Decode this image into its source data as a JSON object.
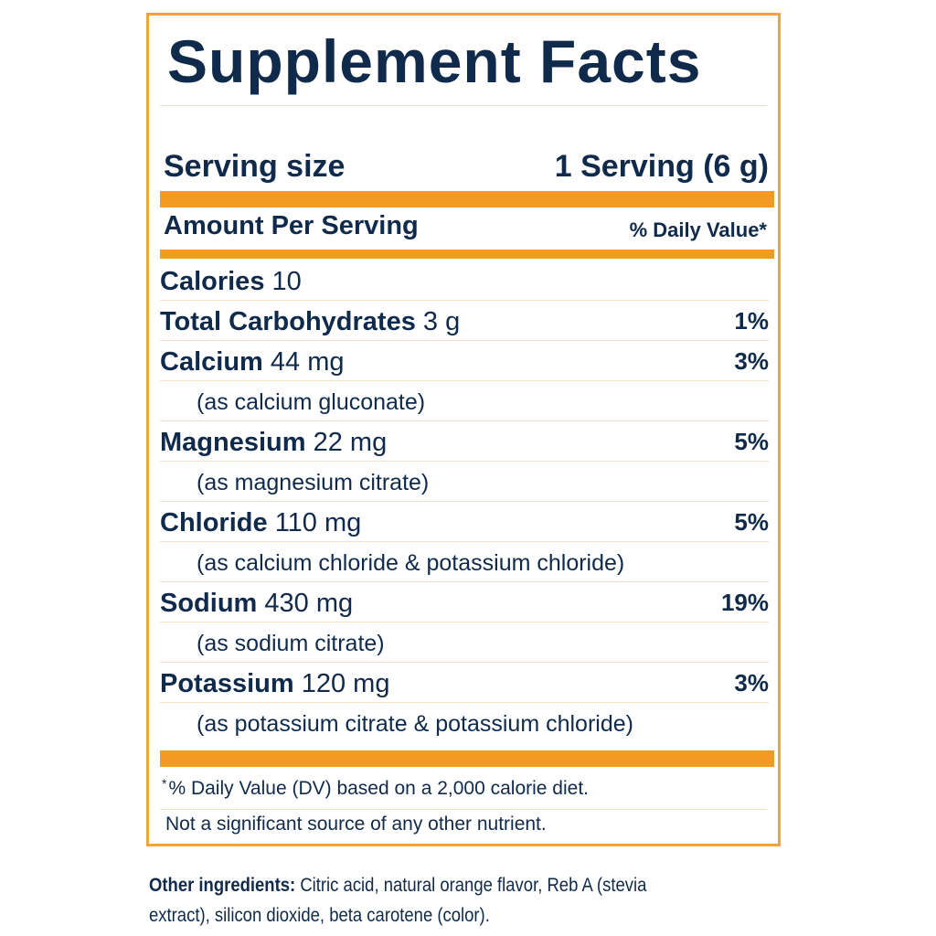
{
  "label": {
    "title": "Supplement Facts",
    "serving_size_label": "Serving size",
    "serving_size_value": "1 Serving (6 g)",
    "amount_per_serving": "Amount Per Serving",
    "daily_value_header": "% Daily Value*"
  },
  "nutrients": [
    {
      "name": "Calories",
      "amount": "10",
      "dv": ""
    },
    {
      "name": "Total Carbohydrates",
      "amount": "3 g",
      "dv": "1%"
    },
    {
      "name": "Calcium",
      "amount": "44 mg",
      "dv": "3%",
      "source": "(as calcium gluconate)"
    },
    {
      "name": "Magnesium",
      "amount": "22 mg",
      "dv": "5%",
      "source": "(as magnesium citrate)"
    },
    {
      "name": "Chloride",
      "amount": "110 mg",
      "dv": "5%",
      "source": "(as calcium chloride & potassium chloride)"
    },
    {
      "name": "Sodium",
      "amount": "430 mg",
      "dv": "19%",
      "source": "(as sodium citrate)"
    },
    {
      "name": "Potassium",
      "amount": "120 mg",
      "dv": "3%",
      "source": "(as potassium citrate & potassium chloride)"
    }
  ],
  "footnotes": {
    "asterisk": "*",
    "dv_note": "% Daily Value (DV) based on a 2,000 calorie diet.",
    "not_significant": "Not a significant source of any other nutrient."
  },
  "other_ingredients": {
    "label": "Other ingredients:",
    "text": " Citric acid, natural orange flavor, Reb A (stevia extract), silicon dioxide, beta carotene (color)."
  },
  "colors": {
    "border": "#f2a33a",
    "bar": "#f39a22",
    "text": "#0f2a4a"
  }
}
